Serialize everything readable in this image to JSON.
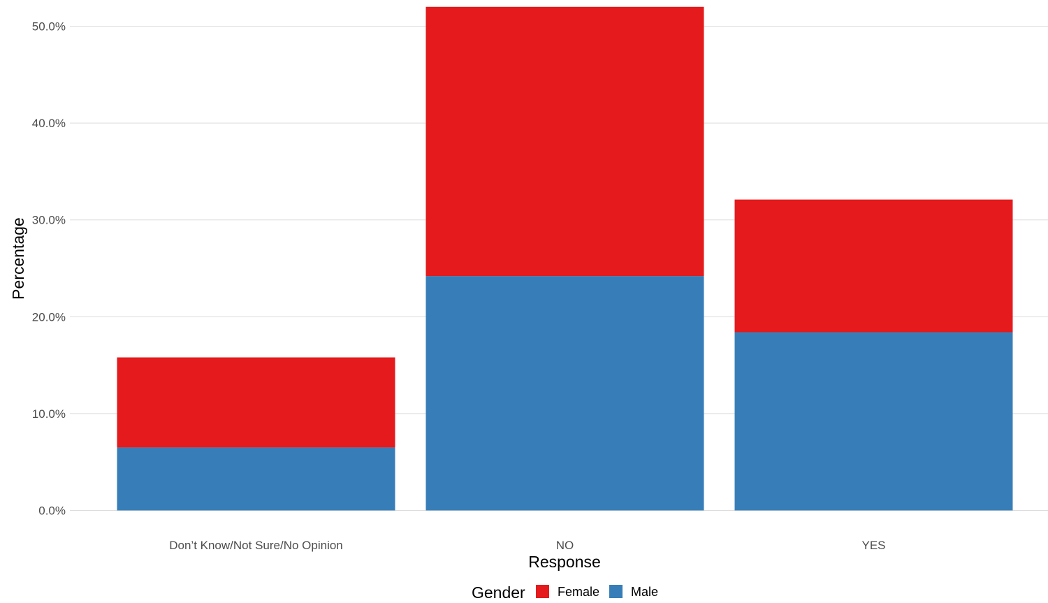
{
  "chart_data": {
    "type": "bar",
    "stacked": true,
    "categories": [
      "Don’t Know/Not Sure/No Opinion",
      "NO",
      "YES"
    ],
    "series": [
      {
        "name": "Male",
        "color": "#377eb8",
        "values": [
          6.5,
          24.2,
          18.4
        ]
      },
      {
        "name": "Female",
        "color": "#e41a1c",
        "values": [
          9.3,
          27.8,
          13.7
        ]
      }
    ],
    "xlabel": "Response",
    "ylabel": "Percentage",
    "ylim": [
      0,
      52
    ],
    "yticks": [
      0,
      10,
      20,
      30,
      40,
      50
    ],
    "ytick_labels": [
      "0.0%",
      "10.0%",
      "20.0%",
      "30.0%",
      "40.0%",
      "50.0%"
    ],
    "grid": true,
    "legend": {
      "title": "Gender",
      "position": "bottom",
      "entries": [
        {
          "label": "Female",
          "color": "#e41a1c"
        },
        {
          "label": "Male",
          "color": "#377eb8"
        }
      ]
    }
  }
}
